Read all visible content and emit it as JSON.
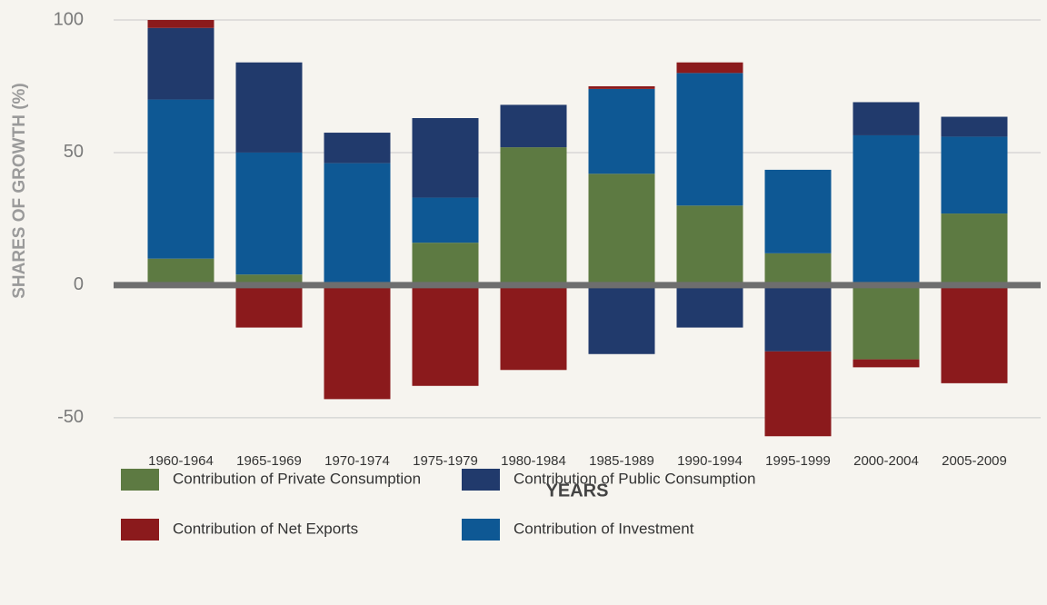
{
  "chart_data": {
    "type": "stacked_bar",
    "y_label": "SHARES OF GROWTH (%)",
    "x_label": "YEARS",
    "categories": [
      "1960-1964",
      "1965-1969",
      "1970-1974",
      "1975-1979",
      "1980-1984",
      "1985-1989",
      "1990-1994",
      "1995-1999",
      "2000-2004",
      "2005-2009"
    ],
    "series": [
      {
        "name": "Contribution of Private Consumption",
        "color": "#5d7a42",
        "values": [
          10,
          4,
          0,
          16,
          52,
          42,
          30,
          12,
          -28,
          27
        ]
      },
      {
        "name": "Contribution of Investment",
        "color": "#0e5894",
        "values": [
          60,
          46,
          46,
          17,
          0,
          32,
          50,
          31.5,
          56.5,
          29
        ]
      },
      {
        "name": "Contribution of Public Consumption",
        "color": "#213a6c",
        "values": [
          27,
          34,
          11.5,
          30,
          16,
          -26,
          -16,
          -25,
          12.5,
          7.5
        ]
      },
      {
        "name": "Contribution of Net Exports",
        "color": "#8b1a1c",
        "values": [
          3,
          -16,
          -43,
          -38,
          -32,
          1,
          4,
          -32,
          -3,
          -37
        ]
      }
    ],
    "ylim": [
      -60,
      100
    ],
    "yticks": [
      -50,
      0,
      50,
      100
    ],
    "grid": true
  }
}
